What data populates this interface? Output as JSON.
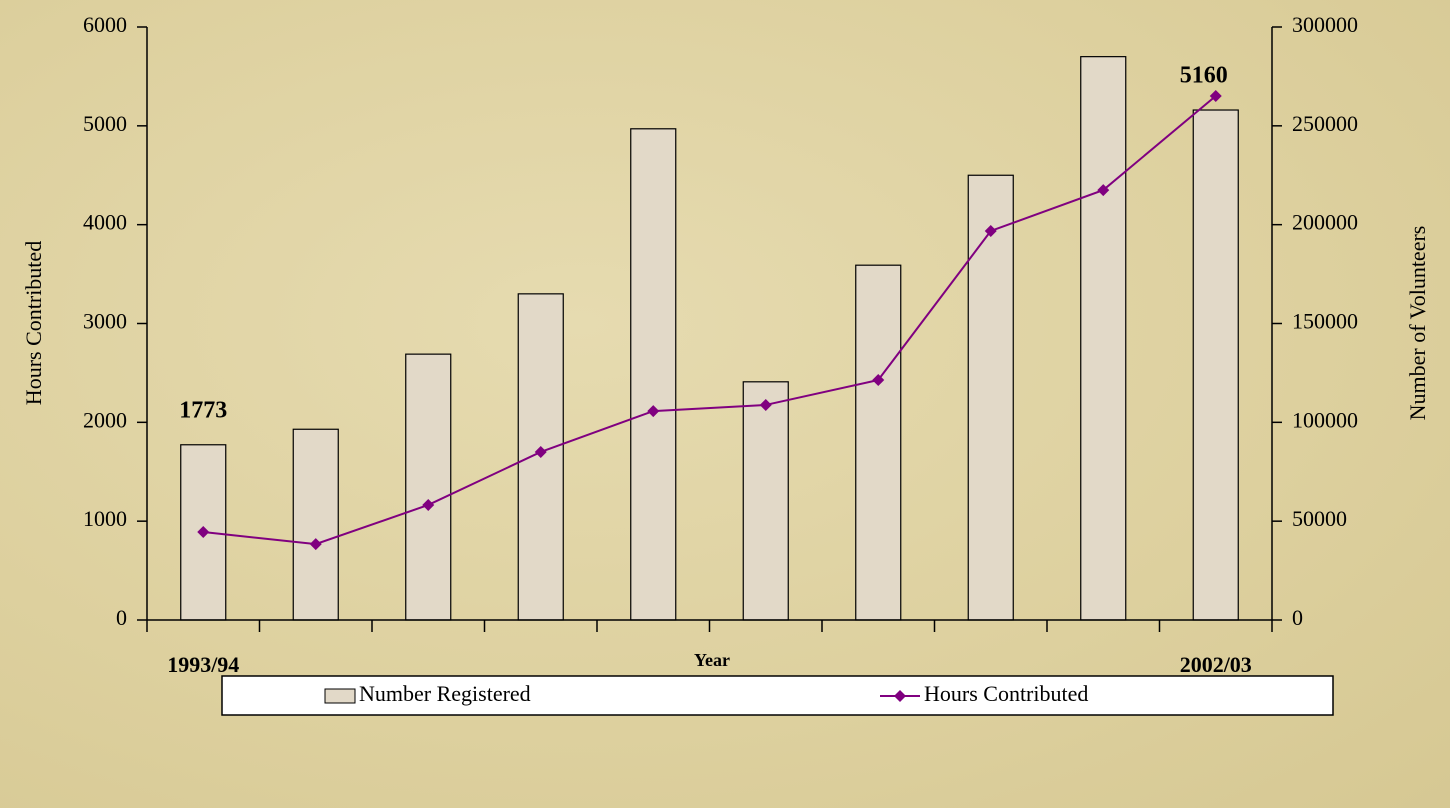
{
  "chart_data": {
    "type": "bar-line",
    "xlabel": "Year",
    "ylabel": "Hours Contributed",
    "y2label": "Number of Volunteers",
    "categories": [
      "1993/94",
      null,
      null,
      null,
      null,
      null,
      null,
      null,
      null,
      "2002/03"
    ],
    "series": [
      {
        "name": "Number Registered",
        "type": "bar",
        "color": "#e2d9c8",
        "axis": "y",
        "values": [
          1773,
          1930,
          2690,
          3300,
          4970,
          2410,
          3590,
          4500,
          5700,
          5160
        ]
      },
      {
        "name": "Hours Contributed",
        "type": "line",
        "color": "#800080",
        "axis": "y2",
        "values": [
          44500,
          38400,
          58200,
          85000,
          105700,
          108800,
          121400,
          196800,
          217500,
          265100
        ]
      }
    ],
    "ylim": [
      0,
      6000
    ],
    "yticks": [
      0,
      1000,
      2000,
      3000,
      4000,
      5000,
      6000
    ],
    "y2lim": [
      0,
      300000
    ],
    "y2ticks": [
      0,
      50000,
      100000,
      150000,
      200000,
      250000,
      300000
    ],
    "grid": false,
    "legend": "bottom"
  }
}
